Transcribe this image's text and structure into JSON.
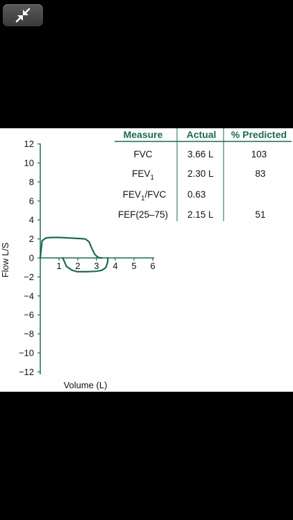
{
  "toolbar": {
    "collapse_icon": "collapse-arrows-icon"
  },
  "colors": {
    "accent": "#1a6b4a",
    "background": "#000000",
    "panel": "#ffffff"
  },
  "table": {
    "headers": [
      "Measure",
      "Actual",
      "% Predicted"
    ],
    "rows": [
      {
        "measure": "FVC",
        "actual": "3.66 L",
        "predicted": "103"
      },
      {
        "measure": "FEV",
        "measure_sub": "1",
        "actual": "2.30 L",
        "predicted": "83"
      },
      {
        "measure": "FEV",
        "measure_sub": "1",
        "measure_suffix": "/FVC",
        "actual": "0.63",
        "predicted": ""
      },
      {
        "measure": "FEF(25–75)",
        "actual": "2.15 L",
        "predicted": "51"
      }
    ]
  },
  "chart_data": {
    "type": "line",
    "xlabel": "Volume (L)",
    "ylabel": "Flow L/S",
    "xlim": [
      0,
      6
    ],
    "ylim": [
      -12,
      12
    ],
    "x_ticks": [
      "1",
      "2",
      "3",
      "4",
      "5",
      "6"
    ],
    "y_ticks": [
      "12",
      "10",
      "8",
      "6",
      "4",
      "2",
      "0",
      "−2",
      "−4",
      "−6",
      "−8",
      "−10",
      "−12"
    ],
    "series": [
      {
        "x": [
          0,
          0.1,
          0.3,
          0.6,
          1.0,
          1.5,
          2.0,
          2.4,
          2.6,
          2.75,
          2.9,
          3.05,
          3.2,
          3.3
        ],
        "y": [
          0,
          1.8,
          2.1,
          2.15,
          2.15,
          2.1,
          2.05,
          2.0,
          1.7,
          1.0,
          0.4,
          0.1,
          0,
          0
        ]
      },
      {
        "x": [
          1.2,
          1.4,
          1.7,
          2.0,
          2.5,
          3.0,
          3.3,
          3.5,
          3.6,
          3.6
        ],
        "y": [
          0,
          -0.9,
          -1.3,
          -1.45,
          -1.45,
          -1.4,
          -1.3,
          -1.0,
          -0.4,
          0
        ]
      }
    ]
  }
}
